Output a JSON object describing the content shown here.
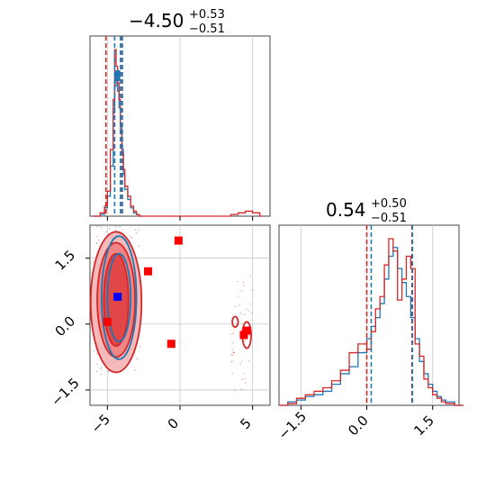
{
  "chart_data": [
    {
      "type": "histogram",
      "panel": "marginal-x",
      "title": {
        "main": "−4.50",
        "sup": "+0.53",
        "sub": "−0.51"
      },
      "xlim": [
        -6.2,
        6.2
      ],
      "grid": true,
      "x_ticks": [
        -5,
        0,
        5
      ],
      "series": [
        {
          "color": "#1f77b4",
          "bins_x": [
            -6.0,
            -5.5,
            -5.2,
            -5.0,
            -4.8,
            -4.6,
            -4.5,
            -4.4,
            -4.3,
            -4.2,
            -4.1,
            -4.0,
            -3.9,
            -3.8,
            -3.6,
            -3.4,
            -3.2,
            -3.0,
            -2.8
          ],
          "heights": [
            0,
            0.01,
            0.05,
            0.12,
            0.3,
            0.62,
            0.78,
            0.82,
            0.75,
            0.65,
            0.55,
            0.4,
            0.25,
            0.16,
            0.1,
            0.05,
            0.02,
            0.01,
            0
          ]
        },
        {
          "color": "#d62728",
          "bins_x": [
            -6.0,
            -5.5,
            -5.2,
            -5.0,
            -4.8,
            -4.6,
            -4.5,
            -4.4,
            -4.3,
            -4.2,
            -4.1,
            -4.0,
            -3.9,
            -3.8,
            -3.6,
            -3.4,
            -3.2,
            -3.0,
            -2.8,
            3.5,
            4.0,
            4.5,
            5.0,
            5.5
          ],
          "heights": [
            0,
            0.02,
            0.06,
            0.15,
            0.4,
            0.7,
            1.0,
            0.9,
            0.8,
            0.7,
            0.5,
            0.38,
            0.28,
            0.18,
            0.12,
            0.06,
            0.03,
            0.01,
            0,
            0.01,
            0.02,
            0.03,
            0.02,
            0
          ]
        }
      ],
      "quantiles": [
        {
          "color": "#d62728",
          "x": [
            -5.1,
            -4.0
          ]
        },
        {
          "color": "#1f77b4",
          "x": [
            -4.5,
            -4.1,
            -3.97
          ]
        }
      ],
      "markers": [
        {
          "x": -4.3,
          "color": "#1f77b4"
        }
      ]
    },
    {
      "type": "histogram",
      "panel": "marginal-y",
      "title": {
        "main": "0.54",
        "sup": "+0.50",
        "sub": "−0.51"
      },
      "xlim": [
        -2.0,
        2.1
      ],
      "grid": true,
      "x_ticks": [
        -1.5,
        0.0,
        1.5
      ],
      "series": [
        {
          "color": "#1f77b4",
          "bins_x": [
            -2.0,
            -1.8,
            -1.6,
            -1.4,
            -1.2,
            -1.0,
            -0.8,
            -0.6,
            -0.4,
            -0.2,
            0.0,
            0.1,
            0.2,
            0.3,
            0.4,
            0.5,
            0.6,
            0.7,
            0.8,
            0.9,
            1.0,
            1.1,
            1.2,
            1.3,
            1.4,
            1.5,
            1.6,
            1.7,
            1.8,
            2.0
          ],
          "heights": [
            0,
            0.02,
            0.03,
            0.05,
            0.06,
            0.08,
            0.12,
            0.18,
            0.22,
            0.3,
            0.38,
            0.45,
            0.5,
            0.58,
            0.72,
            0.85,
            0.9,
            0.78,
            0.7,
            0.62,
            0.5,
            0.38,
            0.25,
            0.18,
            0.12,
            0.08,
            0.05,
            0.03,
            0.02,
            0
          ]
        },
        {
          "color": "#d62728",
          "bins_x": [
            -2.0,
            -1.8,
            -1.6,
            -1.4,
            -1.2,
            -1.0,
            -0.8,
            -0.6,
            -0.4,
            -0.2,
            0.0,
            0.1,
            0.2,
            0.3,
            0.4,
            0.5,
            0.6,
            0.7,
            0.8,
            0.9,
            1.0,
            1.1,
            1.2,
            1.3,
            1.4,
            1.5,
            1.6,
            1.7,
            1.8,
            2.0
          ],
          "heights": [
            0,
            0.01,
            0.04,
            0.06,
            0.08,
            0.1,
            0.14,
            0.2,
            0.3,
            0.35,
            0.32,
            0.42,
            0.55,
            0.62,
            0.8,
            0.95,
            0.88,
            0.6,
            0.72,
            0.85,
            0.78,
            0.35,
            0.28,
            0.15,
            0.1,
            0.06,
            0.04,
            0.02,
            0.01,
            0
          ]
        }
      ],
      "quantiles": [
        {
          "color": "#d62728",
          "x": [
            0.0,
            1.03
          ]
        },
        {
          "color": "#1f77b4",
          "x": [
            0.1,
            1.04
          ]
        }
      ]
    },
    {
      "type": "scatter",
      "panel": "joint",
      "xlim": [
        -6.2,
        6.2
      ],
      "ylim": [
        -1.85,
        2.25
      ],
      "grid": true,
      "x_ticks": [
        -5,
        0,
        5
      ],
      "y_ticks": [
        -1.5,
        0.0,
        1.5
      ],
      "contours": [
        {
          "color": "#d62728",
          "cx": -4.4,
          "cy": 0.5,
          "rx": 1.75,
          "ry": 1.6,
          "fill": "#f4b4b4"
        },
        {
          "color": "#d62728",
          "cx": -4.4,
          "cy": 0.55,
          "rx": 1.3,
          "ry": 1.3,
          "fill": "#ee8080"
        },
        {
          "color": "#d62728",
          "cx": -4.4,
          "cy": 0.55,
          "rx": 0.85,
          "ry": 1.05,
          "fill": "#e04040"
        },
        {
          "color": "#1f77b4",
          "cx": -4.2,
          "cy": 0.6,
          "rx": 1.2,
          "ry": 1.4,
          "fill": "none"
        },
        {
          "color": "#1f77b4",
          "cx": -4.2,
          "cy": 0.6,
          "rx": 0.8,
          "ry": 1.0,
          "fill": "none"
        },
        {
          "color": "#d62728",
          "cx": 3.8,
          "cy": 0.05,
          "rx": 0.2,
          "ry": 0.12,
          "fill": "none"
        },
        {
          "color": "#d62728",
          "cx": 4.6,
          "cy": -0.25,
          "rx": 0.3,
          "ry": 0.3,
          "fill": "none"
        }
      ],
      "squares": [
        {
          "x": -0.1,
          "y": 1.9,
          "color": "#ff0000"
        },
        {
          "x": -2.2,
          "y": 1.2,
          "color": "#ff0000"
        },
        {
          "x": -0.6,
          "y": -0.45,
          "color": "#ff0000"
        },
        {
          "x": -5.0,
          "y": 0.05,
          "color": "#ff0000"
        },
        {
          "x": 4.6,
          "y": -0.15,
          "color": "#ff0000"
        },
        {
          "x": 4.4,
          "y": -0.25,
          "color": "#ff0000"
        },
        {
          "x": -4.3,
          "y": 0.62,
          "color": "#0000ff"
        }
      ]
    }
  ]
}
